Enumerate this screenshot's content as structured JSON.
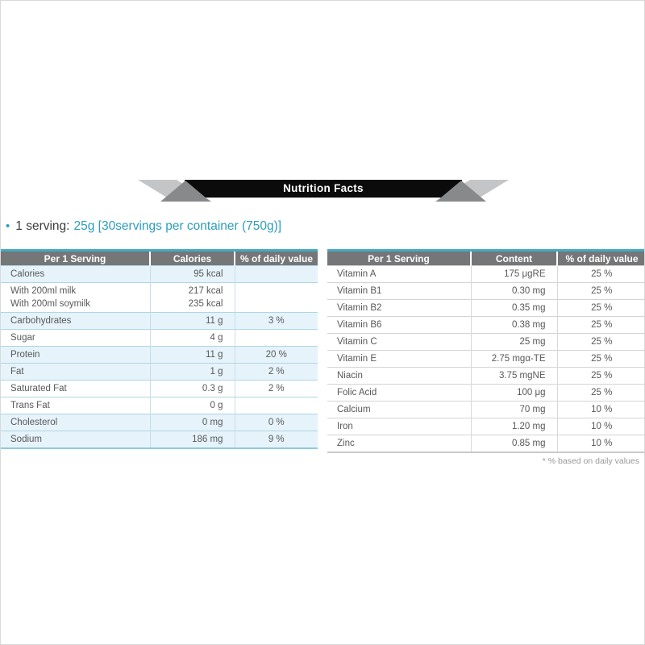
{
  "page": {
    "banner_title": "Nutrition Facts",
    "serving": {
      "bullet": "•",
      "label": "1 serving:",
      "value": "25g [30servings per container (750g)]"
    },
    "footnote": "* % based on daily values"
  },
  "left_table": {
    "headers": [
      "Per 1 Serving",
      "Calories",
      "% of daily value"
    ],
    "rows": [
      {
        "name": [
          "Calories"
        ],
        "value": [
          "95 kcal"
        ],
        "dv": "",
        "highlight": true
      },
      {
        "name": [
          "With 200ml milk",
          "With 200ml soymilk"
        ],
        "value": [
          "217 kcal",
          "235 kcal"
        ],
        "dv": "",
        "highlight": false
      },
      {
        "name": [
          "Carbohydrates"
        ],
        "value": [
          "11 g"
        ],
        "dv": "3 %",
        "highlight": true
      },
      {
        "name": [
          "Sugar"
        ],
        "value": [
          "4 g"
        ],
        "dv": "",
        "highlight": false
      },
      {
        "name": [
          "Protein"
        ],
        "value": [
          "11 g"
        ],
        "dv": "20 %",
        "highlight": true
      },
      {
        "name": [
          "Fat"
        ],
        "value": [
          "1 g"
        ],
        "dv": "2 %",
        "highlight": true
      },
      {
        "name": [
          "Saturated Fat"
        ],
        "value": [
          "0.3 g"
        ],
        "dv": "2 %",
        "highlight": false
      },
      {
        "name": [
          "Trans Fat"
        ],
        "value": [
          "0 g"
        ],
        "dv": "",
        "highlight": false
      },
      {
        "name": [
          "Cholesterol"
        ],
        "value": [
          "0 mg"
        ],
        "dv": "0 %",
        "highlight": true
      },
      {
        "name": [
          "Sodium"
        ],
        "value": [
          "186 mg"
        ],
        "dv": "9 %",
        "highlight": true
      }
    ]
  },
  "right_table": {
    "headers": [
      "Per 1 Serving",
      "Content",
      "% of daily value"
    ],
    "rows": [
      {
        "name": [
          "Vitamin A"
        ],
        "value": [
          "175 μgRE"
        ],
        "dv": "25 %",
        "highlight": false
      },
      {
        "name": [
          "Vitamin B1"
        ],
        "value": [
          "0.30 mg"
        ],
        "dv": "25 %",
        "highlight": false
      },
      {
        "name": [
          "Vitamin B2"
        ],
        "value": [
          "0.35 mg"
        ],
        "dv": "25 %",
        "highlight": false
      },
      {
        "name": [
          "Vitamin B6"
        ],
        "value": [
          "0.38 mg"
        ],
        "dv": "25 %",
        "highlight": false
      },
      {
        "name": [
          "Vitamin C"
        ],
        "value": [
          "25 mg"
        ],
        "dv": "25 %",
        "highlight": false
      },
      {
        "name": [
          "Vitamin E"
        ],
        "value": [
          "2.75 mgα-TE"
        ],
        "dv": "25 %",
        "highlight": false
      },
      {
        "name": [
          "Niacin"
        ],
        "value": [
          "3.75 mgNE"
        ],
        "dv": "25 %",
        "highlight": false
      },
      {
        "name": [
          "Folic Acid"
        ],
        "value": [
          "100 μg"
        ],
        "dv": "25 %",
        "highlight": false
      },
      {
        "name": [
          "Calcium"
        ],
        "value": [
          "70 mg"
        ],
        "dv": "10 %",
        "highlight": false
      },
      {
        "name": [
          "Iron"
        ],
        "value": [
          "1.20 mg"
        ],
        "dv": "10 %",
        "highlight": false
      },
      {
        "name": [
          "Zinc"
        ],
        "value": [
          "0.85 mg"
        ],
        "dv": "10 %",
        "highlight": false
      }
    ]
  },
  "colors": {
    "accent_teal": "#2d9dbd",
    "table_top_border": "#44a9c1",
    "header_gray": "#757678",
    "highlight_row": "#e6f3fa",
    "row_separator_left": "#aed6e4",
    "row_separator_right": "#d4d4d4",
    "banner_black": "#0b0b0b",
    "ribbon_light_gray": "#c4c5c7",
    "ribbon_dark_gray": "#88898b",
    "body_text": "#57585a",
    "footnote_text": "#97989a"
  }
}
